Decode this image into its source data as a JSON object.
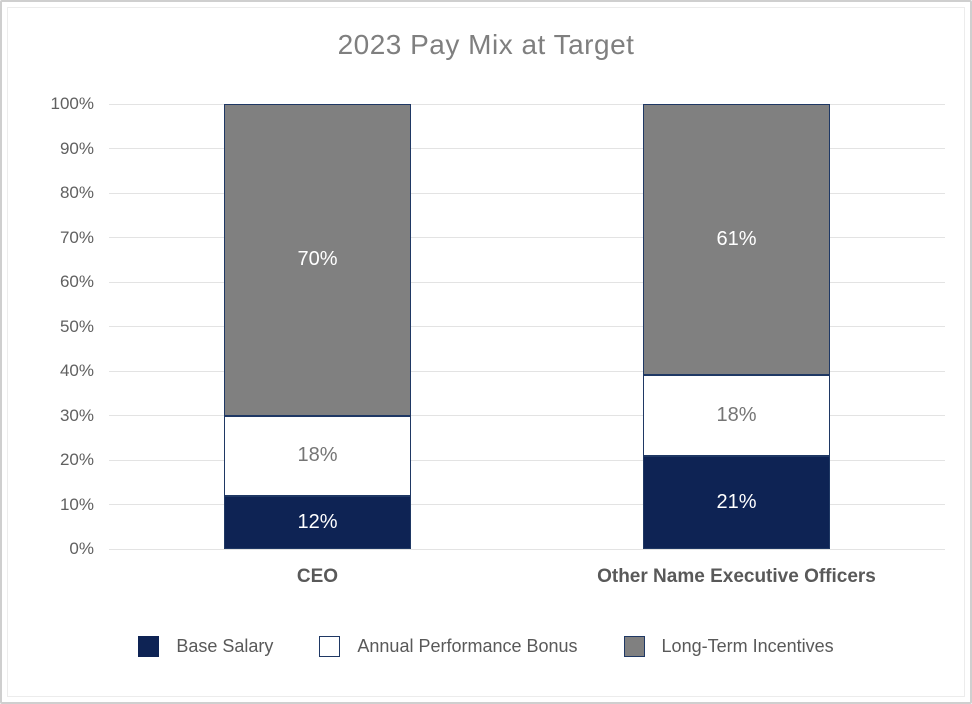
{
  "title": "2023 Pay Mix at Target",
  "chart_data": {
    "type": "bar",
    "stacked": true,
    "title": "2023 Pay Mix at Target",
    "categories": [
      "CEO",
      "Other Name Executive Officers"
    ],
    "series": [
      {
        "name": "Base Salary",
        "values": [
          12,
          21
        ],
        "fill": "#0e2354",
        "label_color": "#ffffff"
      },
      {
        "name": "Annual Performance Bonus",
        "values": [
          18,
          18
        ],
        "fill": "#ffffff",
        "label_color": "#757575"
      },
      {
        "name": "Long-Term Incentives",
        "values": [
          70,
          61
        ],
        "fill": "#808080",
        "label_color": "#ffffff"
      }
    ],
    "data_labels": [
      [
        "12%",
        "18%",
        "70%"
      ],
      [
        "21%",
        "18%",
        "61%"
      ]
    ],
    "ylim": [
      0,
      100
    ],
    "ytick_labels": [
      "0%",
      "10%",
      "20%",
      "30%",
      "40%",
      "50%",
      "60%",
      "70%",
      "80%",
      "90%",
      "100%"
    ],
    "grid": true,
    "legend_position": "bottom"
  },
  "legend": {
    "items": [
      {
        "label": "Base Salary"
      },
      {
        "label": "Annual Performance Bonus"
      },
      {
        "label": "Long-Term Incentives"
      }
    ]
  },
  "colors": {
    "navy": "#0e2354",
    "gray": "#808080",
    "segment_border": "#1f3864",
    "gridline": "#e3e3e3",
    "title_text": "#7f7f7f",
    "axis_text": "#595959",
    "tick_text": "#606060",
    "label_on_dark": "#ffffff",
    "label_on_white": "#757575"
  }
}
